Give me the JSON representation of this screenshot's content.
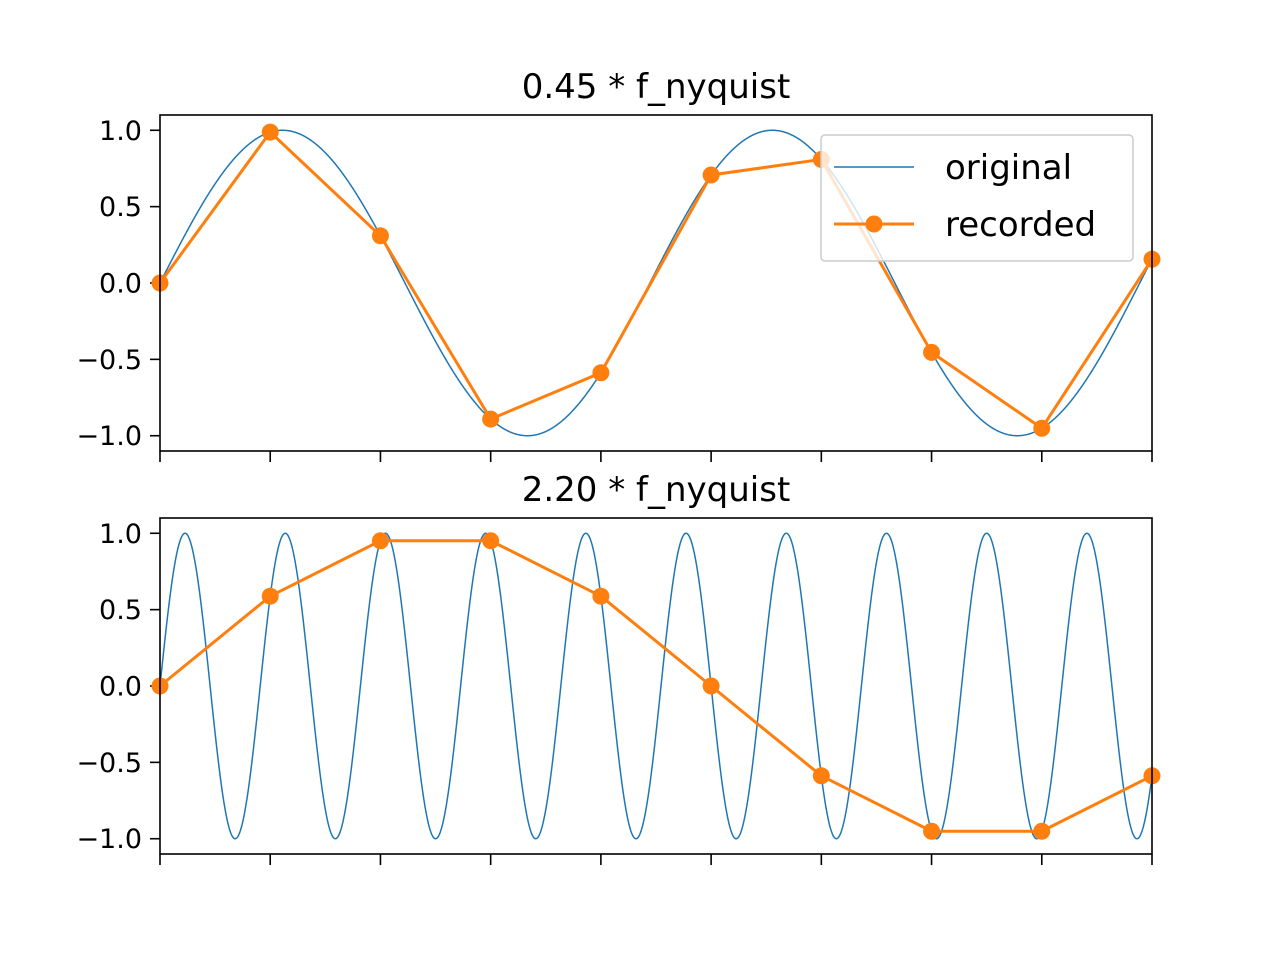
{
  "chart_data": [
    {
      "type": "line",
      "title": "0.45 * f_nyquist",
      "xlabel": "",
      "ylabel": "",
      "xlim": [
        0,
        9
      ],
      "ylim": [
        -1.1,
        1.1
      ],
      "yticks": [
        1.0,
        0.5,
        0.0,
        -0.5,
        -1.0
      ],
      "ytick_labels": [
        "1.0",
        "0.5",
        "0.0",
        "−0.5",
        "−1.0"
      ],
      "xticks": [
        0,
        1,
        2,
        3,
        4,
        5,
        6,
        7,
        8,
        9
      ],
      "xtick_labels_shown": false,
      "grid": false,
      "legend": "upper-right",
      "series": [
        {
          "name": "original",
          "style": "line",
          "color": "#1f77b4",
          "function": "sin(2*pi*0.225*x)",
          "x_range": [
            0,
            9
          ]
        },
        {
          "name": "recorded",
          "style": "line-markers",
          "color": "#ff7f0e",
          "x": [
            0,
            1,
            2,
            3,
            4,
            5,
            6,
            7,
            8,
            9
          ],
          "y": [
            0.0,
            0.988,
            0.309,
            -0.891,
            -0.588,
            0.707,
            0.809,
            -0.454,
            -0.951,
            0.156
          ]
        }
      ]
    },
    {
      "type": "line",
      "title": "2.20 * f_nyquist",
      "xlabel": "",
      "ylabel": "",
      "xlim": [
        0,
        9
      ],
      "ylim": [
        -1.1,
        1.1
      ],
      "yticks": [
        1.0,
        0.5,
        0.0,
        -0.5,
        -1.0
      ],
      "ytick_labels": [
        "1.0",
        "0.5",
        "0.0",
        "−0.5",
        "−1.0"
      ],
      "xticks": [
        0,
        1,
        2,
        3,
        4,
        5,
        6,
        7,
        8,
        9
      ],
      "xtick_labels_shown": false,
      "grid": false,
      "series": [
        {
          "name": "original",
          "style": "line",
          "color": "#1f77b4",
          "function": "sin(2*pi*1.1*x)",
          "x_range": [
            0,
            9
          ]
        },
        {
          "name": "recorded",
          "style": "line-markers",
          "color": "#ff7f0e",
          "x": [
            0,
            1,
            2,
            3,
            4,
            5,
            6,
            7,
            8,
            9
          ],
          "y": [
            0.0,
            0.588,
            0.951,
            0.951,
            0.588,
            0.0,
            -0.588,
            -0.951,
            -0.951,
            -0.588
          ]
        }
      ]
    }
  ]
}
